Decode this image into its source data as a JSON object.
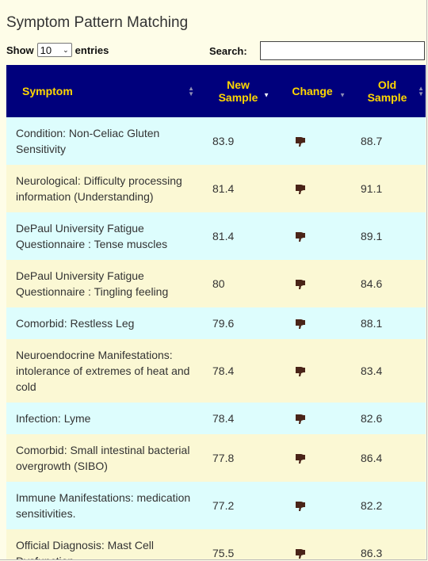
{
  "title": "Symptom Pattern Matching",
  "length_control": {
    "show_label": "Show",
    "selected": "10",
    "entries_label": "entries"
  },
  "search": {
    "label": "Search:",
    "value": ""
  },
  "columns": {
    "symptom": "Symptom",
    "new_sample": [
      "New",
      "Sample"
    ],
    "change": "Change",
    "old_sample": [
      "Old",
      "Sample"
    ]
  },
  "rows": [
    {
      "symptom": "Condition: Non-Celiac Gluten Sensitivity",
      "new": "83.9",
      "change_icon": "thumbs-down-icon",
      "old": "88.7"
    },
    {
      "symptom": "Neurological: Difficulty processing information (Understanding)",
      "new": "81.4",
      "change_icon": "thumbs-down-icon",
      "old": "91.1"
    },
    {
      "symptom": "DePaul University Fatigue Questionnaire : Tense muscles",
      "new": "81.4",
      "change_icon": "thumbs-down-icon",
      "old": "89.1"
    },
    {
      "symptom": "DePaul University Fatigue Questionnaire : Tingling feeling",
      "new": "80",
      "change_icon": "thumbs-down-icon",
      "old": "84.6"
    },
    {
      "symptom": "Comorbid: Restless Leg",
      "new": "79.6",
      "change_icon": "thumbs-down-icon",
      "old": "88.1"
    },
    {
      "symptom": "Neuroendocrine Manifestations: intolerance of extremes of heat and cold",
      "new": "78.4",
      "change_icon": "thumbs-down-icon",
      "old": "83.4"
    },
    {
      "symptom": "Infection: Lyme",
      "new": "78.4",
      "change_icon": "thumbs-down-icon",
      "old": "82.6"
    },
    {
      "symptom": "Comorbid: Small intestinal bacterial overgrowth (SIBO)",
      "new": "77.8",
      "change_icon": "thumbs-down-icon",
      "old": "86.4"
    },
    {
      "symptom": "Immune Manifestations: medication sensitivities.",
      "new": "77.2",
      "change_icon": "thumbs-down-icon",
      "old": "82.2"
    },
    {
      "symptom": "Official Diagnosis: Mast Cell Dysfunction",
      "new": "75.5",
      "change_icon": "thumbs-down-icon",
      "old": "86.3"
    }
  ],
  "colors": {
    "page_bg": "#fefde8",
    "header_bg": "#00007c",
    "header_text": "#ffd700",
    "row_odd": "#ddfdfd",
    "row_even": "#fbf8d4",
    "icon": "#4a2418"
  }
}
